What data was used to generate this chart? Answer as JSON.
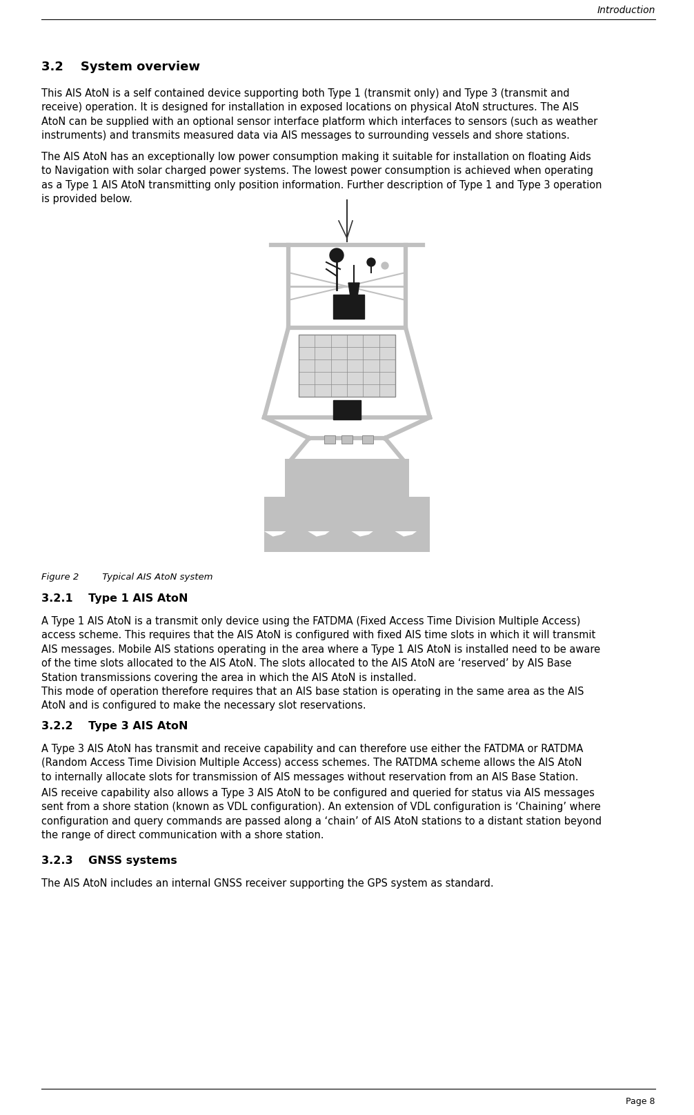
{
  "header_text": "Introduction",
  "footer_text": "Page 8",
  "section_title": "3.2    System overview",
  "para1": "This AIS AtoN is a self contained device supporting both Type 1 (transmit only) and Type 3 (transmit and\nreceive) operation. It is designed for installation in exposed locations on physical AtoN structures. The AIS\nAtoN can be supplied with an optional sensor interface platform which interfaces to sensors (such as weather\ninstruments) and transmits measured data via AIS messages to surrounding vessels and shore stations.",
  "para2": "The AIS AtoN has an exceptionally low power consumption making it suitable for installation on floating Aids\nto Navigation with solar charged power systems. The lowest power consumption is achieved when operating\nas a Type 1 AIS AtoN transmitting only position information. Further description of Type 1 and Type 3 operation\nis provided below.",
  "figure_caption": "Figure 2        Typical AIS AtoN system",
  "section321_title": "3.2.1    Type 1 AIS AtoN",
  "section321_para1": "A Type 1 AIS AtoN is a transmit only device using the FATDMA (Fixed Access Time Division Multiple Access)\naccess scheme. This requires that the AIS AtoN is configured with fixed AIS time slots in which it will transmit\nAIS messages. Mobile AIS stations operating in the area where a Type 1 AIS AtoN is installed need to be aware\nof the time slots allocated to the AIS AtoN. The slots allocated to the AIS AtoN are ‘reserved’ by AIS Base\nStation transmissions covering the area in which the AIS AtoN is installed.",
  "section321_para2": "This mode of operation therefore requires that an AIS base station is operating in the same area as the AIS\nAtoN and is configured to make the necessary slot reservations.",
  "section322_title": "3.2.2    Type 3 AIS AtoN",
  "section322_para1": "A Type 3 AIS AtoN has transmit and receive capability and can therefore use either the FATDMA or RATDMA\n(Random Access Time Division Multiple Access) access schemes. The RATDMA scheme allows the AIS AtoN\nto internally allocate slots for transmission of AIS messages without reservation from an AIS Base Station.",
  "section322_para2": "AIS receive capability also allows a Type 3 AIS AtoN to be configured and queried for status via AIS messages\nsent from a shore station (known as VDL configuration). An extension of VDL configuration is ‘Chaining’ where\nconfiguration and query commands are passed along a ‘chain’ of AIS AtoN stations to a distant station beyond\nthe range of direct communication with a shore station.",
  "section323_title": "3.2.3    GNSS systems",
  "section323_para1": "The AIS AtoN includes an internal GNSS receiver supporting the GPS system as standard.",
  "bg_color": "#ffffff",
  "text_color": "#000000",
  "gray_color": "#c0c0c0",
  "dark_gray": "#888888",
  "black_color": "#1a1a1a"
}
